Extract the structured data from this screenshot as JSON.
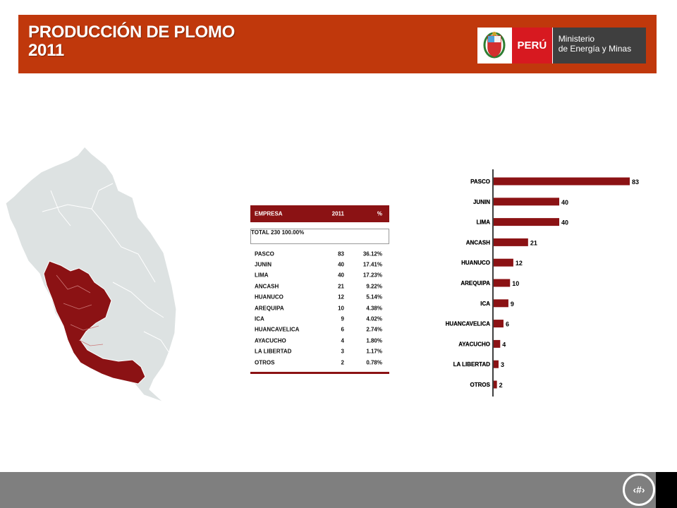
{
  "colors": {
    "accent": "#c0380c",
    "bar": "#8b1214",
    "map_highlight": "#8b1214",
    "map_base": "#dde2e2"
  },
  "header": {
    "title_line1": "PRODUCCIÓN DE PLOMO",
    "title_line2": "2011"
  },
  "logo": {
    "country": "PERÚ",
    "ministry_line1": "Ministerio",
    "ministry_line2": "de Energía y Minas"
  },
  "table": {
    "headers": [
      "EMPRESA",
      "2011",
      "%"
    ],
    "total": [
      "TOTAL",
      "230",
      "100.00%"
    ],
    "rows": [
      [
        "PASCO",
        "83",
        "36.12%"
      ],
      [
        "JUNIN",
        "40",
        "17.41%"
      ],
      [
        "LIMA",
        "40",
        "17.23%"
      ],
      [
        "ANCASH",
        "21",
        "9.22%"
      ],
      [
        "HUANUCO",
        "12",
        "5.14%"
      ],
      [
        "AREQUIPA",
        "10",
        "4.38%"
      ],
      [
        "ICA",
        "9",
        "4.02%"
      ],
      [
        "HUANCAVELICA",
        "6",
        "2.74%"
      ],
      [
        "AYACUCHO",
        "4",
        "1.80%"
      ],
      [
        "LA LIBERTAD",
        "3",
        "1.17%"
      ],
      [
        "OTROS",
        "2",
        "0.78%"
      ]
    ]
  },
  "chart_data": {
    "type": "bar",
    "orientation": "horizontal",
    "categories": [
      "PASCO",
      "JUNIN",
      "LIMA",
      "ANCASH",
      "HUANUCO",
      "AREQUIPA",
      "ICA",
      "HUANCAVELICA",
      "AYACUCHO",
      "LA LIBERTAD",
      "OTROS"
    ],
    "values": [
      83,
      40,
      40,
      21,
      12,
      10,
      9,
      6,
      4,
      3,
      2
    ],
    "title": "",
    "xlabel": "",
    "ylabel": "",
    "xlim": [
      0,
      83
    ],
    "grid": false,
    "data_labels": true
  },
  "footer": {
    "page_number": "‹#›"
  }
}
